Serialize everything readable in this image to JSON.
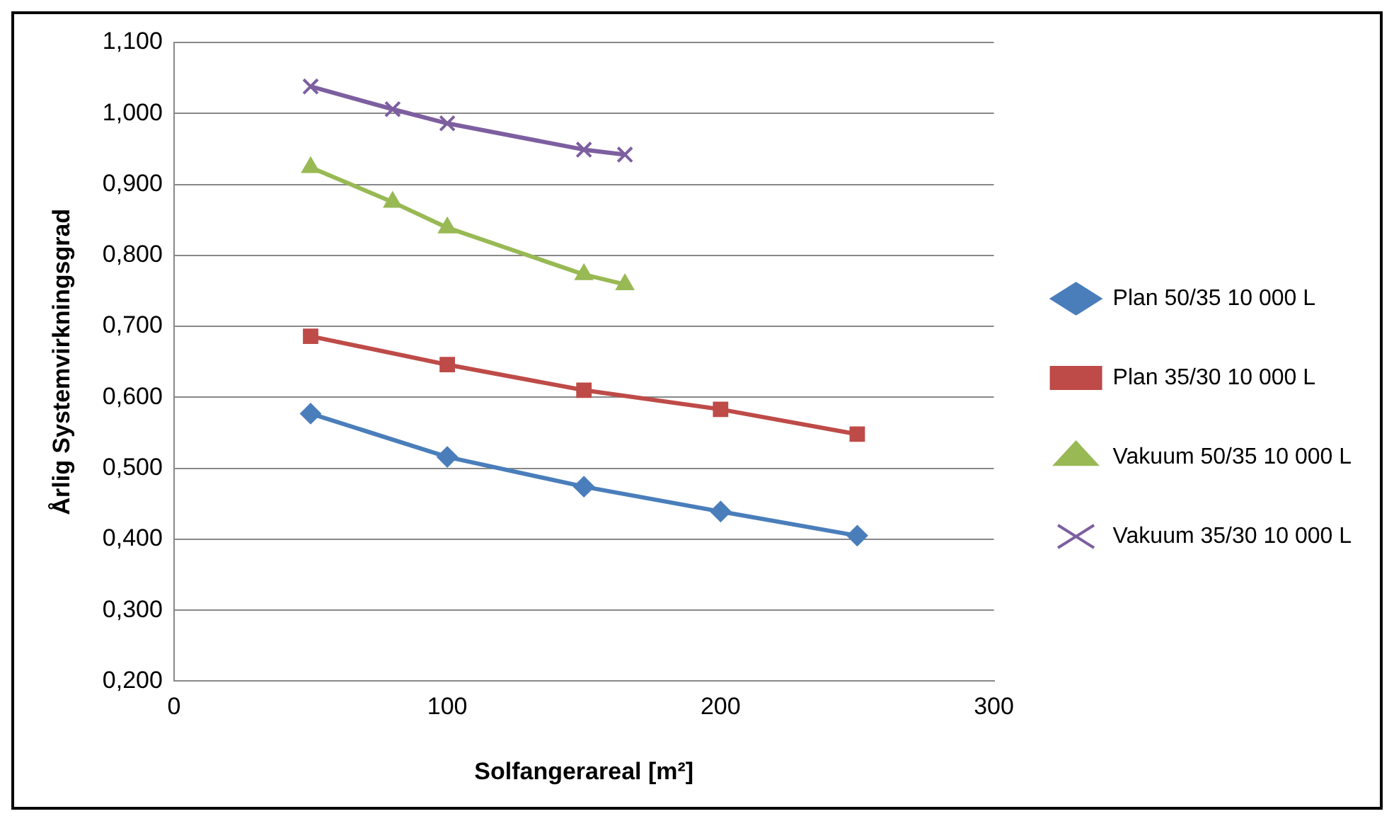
{
  "chart_data": {
    "type": "line",
    "xlabel": "Solfangerareal [m²]",
    "ylabel": "Årlig Systemvirkningsgrad",
    "xlim": [
      0,
      300
    ],
    "xticks": [
      0,
      100,
      200,
      300
    ],
    "ylim": [
      0.2,
      1.1
    ],
    "yticks": [
      {
        "value": 0.2,
        "label": "0,200"
      },
      {
        "value": 0.3,
        "label": "0,300"
      },
      {
        "value": 0.4,
        "label": "0,400"
      },
      {
        "value": 0.5,
        "label": "0,500"
      },
      {
        "value": 0.6,
        "label": "0,600"
      },
      {
        "value": 0.7,
        "label": "0,700"
      },
      {
        "value": 0.8,
        "label": "0,800"
      },
      {
        "value": 0.9,
        "label": "0,900"
      },
      {
        "value": 1.0,
        "label": "1,000"
      },
      {
        "value": 1.1,
        "label": "1,100"
      }
    ],
    "grid": "y",
    "legend": "right",
    "series": [
      {
        "name": "Plan 50/35 10 000 L",
        "color": "#4a7ebb",
        "marker": "diamond",
        "x": [
          50,
          100,
          150,
          200,
          250
        ],
        "values": [
          0.577,
          0.516,
          0.474,
          0.439,
          0.405
        ]
      },
      {
        "name": "Plan 35/30 10 000 L",
        "color": "#be4b48",
        "marker": "square",
        "x": [
          50,
          100,
          150,
          200,
          250
        ],
        "values": [
          0.686,
          0.646,
          0.61,
          0.583,
          0.548
        ]
      },
      {
        "name": "Vakuum 50/35 10 000 L",
        "color": "#98b954",
        "marker": "triangle",
        "x": [
          50,
          80,
          100,
          150,
          165
        ],
        "values": [
          0.924,
          0.875,
          0.839,
          0.773,
          0.759
        ]
      },
      {
        "name": "Vakuum 35/30 10 000 L",
        "color": "#7d5fa0",
        "marker": "cross",
        "x": [
          50,
          80,
          100,
          150,
          165
        ],
        "values": [
          1.038,
          1.006,
          0.986,
          0.949,
          0.942
        ]
      }
    ]
  }
}
